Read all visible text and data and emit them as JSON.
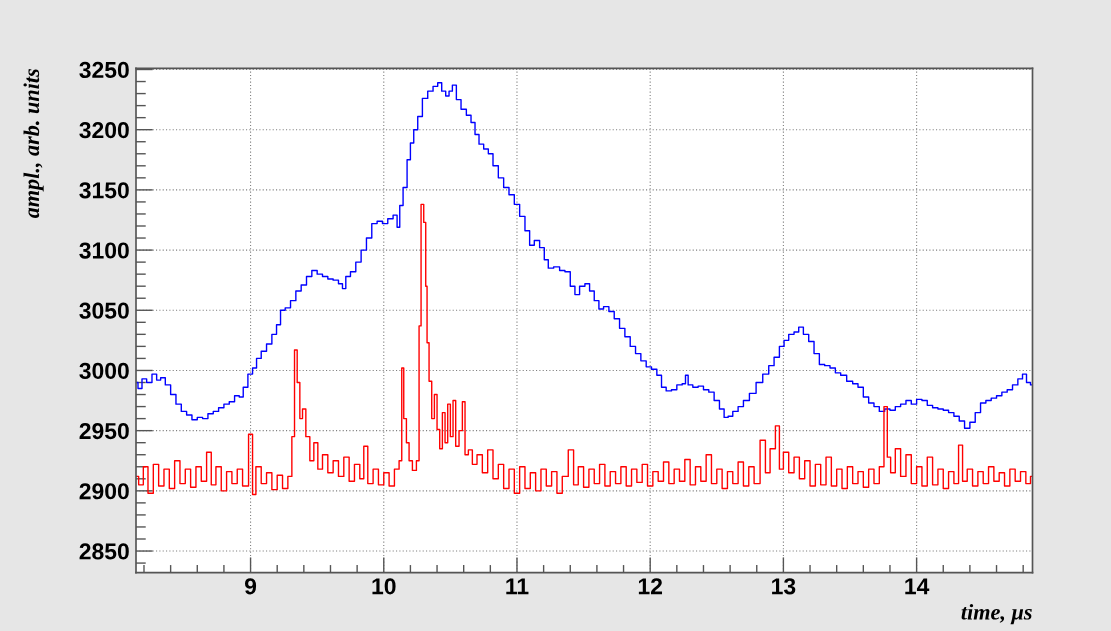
{
  "chart_data": {
    "type": "step",
    "xlabel": "time, μs",
    "ylabel": "ampl., arb. units",
    "xlim": [
      8.14,
      14.87
    ],
    "ylim": [
      2832,
      3251
    ],
    "xticks": [
      9,
      10,
      11,
      12,
      13,
      14
    ],
    "yticks": [
      2850,
      2900,
      2950,
      3000,
      3050,
      3100,
      3150,
      3200,
      3250
    ],
    "grid": true,
    "series": [
      {
        "color": "#0000ff",
        "x": [
          8.14,
          8.17,
          8.2,
          8.24,
          8.28,
          8.31,
          8.34,
          8.38,
          8.42,
          8.46,
          8.5,
          8.54,
          8.58,
          8.62,
          8.66,
          8.7,
          8.74,
          8.78,
          8.82,
          8.86,
          8.9,
          8.93,
          8.96,
          9.0,
          9.03,
          9.06,
          9.1,
          9.14,
          9.18,
          9.21,
          9.24,
          9.28,
          9.32,
          9.36,
          9.4,
          9.44,
          9.48,
          9.52,
          9.56,
          9.6,
          9.64,
          9.68,
          9.7,
          9.73,
          9.77,
          9.81,
          9.85,
          9.89,
          9.93,
          9.97,
          10.01,
          10.05,
          10.09,
          10.11,
          10.13,
          10.16,
          10.19,
          10.21,
          10.24,
          10.27,
          10.31,
          10.35,
          10.39,
          10.42,
          10.45,
          10.48,
          10.5,
          10.53,
          10.56,
          10.6,
          10.64,
          10.67,
          10.7,
          10.73,
          10.77,
          10.8,
          10.84,
          10.88,
          10.92,
          10.96,
          11.0,
          11.04,
          11.08,
          11.11,
          11.15,
          11.19,
          11.22,
          11.25,
          11.3,
          11.34,
          11.38,
          11.42,
          11.45,
          11.49,
          11.53,
          11.56,
          11.6,
          11.63,
          11.67,
          11.71,
          11.75,
          11.79,
          11.83,
          11.87,
          11.91,
          11.95,
          11.99,
          12.03,
          12.07,
          12.1,
          12.14,
          12.18,
          12.22,
          12.26,
          12.27,
          12.3,
          12.34,
          12.38,
          12.42,
          12.46,
          12.5,
          12.54,
          12.57,
          12.6,
          12.64,
          12.68,
          12.72,
          12.77,
          12.82,
          12.87,
          12.91,
          12.95,
          12.99,
          13.02,
          13.06,
          13.1,
          13.13,
          13.17,
          13.21,
          13.25,
          13.29,
          13.33,
          13.37,
          13.41,
          13.45,
          13.5,
          13.54,
          13.58,
          13.62,
          13.66,
          13.7,
          13.74,
          13.78,
          13.82,
          13.86,
          13.9,
          13.94,
          13.98,
          14.02,
          14.06,
          14.1,
          14.14,
          14.18,
          14.22,
          14.26,
          14.3,
          14.34,
          14.38,
          14.42,
          14.46,
          14.5,
          14.54,
          14.58,
          14.62,
          14.66,
          14.7,
          14.74,
          14.78,
          14.81,
          14.84,
          14.87
        ],
        "values": [
          2990,
          2985,
          2993,
          2990,
          2997,
          2992,
          2994,
          2988,
          2980,
          2972,
          2966,
          2963,
          2959,
          2961,
          2960,
          2964,
          2966,
          2969,
          2972,
          2974,
          2979,
          2978,
          2986,
          2997,
          3002,
          3010,
          3016,
          3022,
          3030,
          3038,
          3050,
          3052,
          3058,
          3066,
          3071,
          3078,
          3083,
          3080,
          3078,
          3076,
          3075,
          3072,
          3068,
          3078,
          3082,
          3090,
          3100,
          3110,
          3122,
          3124,
          3122,
          3126,
          3129,
          3119,
          3137,
          3152,
          3175,
          3189,
          3200,
          3211,
          3226,
          3232,
          3236,
          3239,
          3232,
          3228,
          3232,
          3237,
          3225,
          3217,
          3212,
          3206,
          3196,
          3188,
          3184,
          3180,
          3170,
          3160,
          3152,
          3146,
          3138,
          3128,
          3116,
          3104,
          3108,
          3102,
          3092,
          3085,
          3086,
          3083,
          3082,
          3070,
          3063,
          3070,
          3072,
          3066,
          3058,
          3051,
          3053,
          3049,
          3043,
          3035,
          3028,
          3020,
          3014,
          3008,
          3003,
          3001,
          2996,
          2986,
          2983,
          2984,
          2988,
          2989,
          2996,
          2988,
          2986,
          2987,
          2984,
          2982,
          2975,
          2968,
          2961,
          2962,
          2966,
          2970,
          2975,
          2981,
          2990,
          2997,
          3004,
          3011,
          3020,
          3025,
          3030,
          3032,
          3036,
          3030,
          3024,
          3014,
          3005,
          3004,
          3002,
          2998,
          2996,
          2991,
          2989,
          2986,
          2978,
          2973,
          2970,
          2966,
          2968,
          2967,
          2970,
          2972,
          2975,
          2972,
          2976,
          2975,
          2971,
          2969,
          2968,
          2967,
          2965,
          2962,
          2958,
          2952,
          2957,
          2965,
          2973,
          2975,
          2977,
          2979,
          2982,
          2984,
          2988,
          2993,
          2997,
          2990,
          2988
        ]
      },
      {
        "color": "#ff0000",
        "x": [
          8.14,
          8.18,
          8.21,
          8.25,
          8.29,
          8.33,
          8.37,
          8.41,
          8.45,
          8.49,
          8.53,
          8.57,
          8.61,
          8.65,
          8.69,
          8.72,
          8.76,
          8.8,
          8.84,
          8.88,
          8.92,
          8.96,
          9.01,
          9.02,
          9.06,
          9.1,
          9.14,
          9.18,
          9.22,
          9.26,
          9.3,
          9.32,
          9.34,
          9.36,
          9.38,
          9.4,
          9.43,
          9.46,
          9.49,
          9.52,
          9.56,
          9.6,
          9.64,
          9.68,
          9.72,
          9.76,
          9.8,
          9.84,
          9.86,
          9.9,
          9.94,
          9.98,
          10.02,
          10.06,
          10.1,
          10.13,
          10.14,
          10.16,
          10.18,
          10.2,
          10.23,
          10.26,
          10.27,
          10.29,
          10.31,
          10.32,
          10.33,
          10.35,
          10.37,
          10.39,
          10.41,
          10.43,
          10.45,
          10.47,
          10.49,
          10.51,
          10.53,
          10.55,
          10.58,
          10.6,
          10.62,
          10.65,
          10.68,
          10.72,
          10.76,
          10.8,
          10.84,
          10.88,
          10.92,
          10.96,
          11.0,
          11.04,
          11.08,
          11.12,
          11.16,
          11.2,
          11.24,
          11.28,
          11.32,
          11.36,
          11.41,
          11.44,
          11.48,
          11.52,
          11.56,
          11.6,
          11.64,
          11.68,
          11.72,
          11.76,
          11.8,
          11.84,
          11.88,
          11.92,
          11.96,
          12.0,
          12.04,
          12.08,
          12.12,
          12.16,
          12.2,
          12.24,
          12.28,
          12.32,
          12.36,
          12.4,
          12.44,
          12.48,
          12.52,
          12.56,
          12.6,
          12.64,
          12.68,
          12.72,
          12.76,
          12.8,
          12.85,
          12.88,
          12.92,
          12.96,
          12.98,
          13.02,
          13.06,
          13.1,
          13.14,
          13.18,
          13.22,
          13.26,
          13.3,
          13.34,
          13.38,
          13.42,
          13.46,
          13.5,
          13.54,
          13.58,
          13.62,
          13.66,
          13.7,
          13.74,
          13.77,
          13.79,
          13.82,
          13.86,
          13.9,
          13.94,
          13.98,
          14.02,
          14.06,
          14.1,
          14.14,
          14.18,
          14.22,
          14.26,
          14.3,
          14.33,
          14.36,
          14.4,
          14.44,
          14.48,
          14.52,
          14.56,
          14.6,
          14.64,
          14.68,
          14.72,
          14.76,
          14.8,
          14.84,
          14.87
        ],
        "values": [
          2912,
          2905,
          2920,
          2898,
          2922,
          2904,
          2918,
          2902,
          2925,
          2906,
          2918,
          2903,
          2920,
          2908,
          2932,
          2905,
          2920,
          2900,
          2916,
          2906,
          2918,
          2904,
          2947,
          2897,
          2920,
          2906,
          2915,
          2901,
          2913,
          2902,
          2912,
          2945,
          3017,
          2990,
          2960,
          2968,
          2945,
          2925,
          2940,
          2918,
          2930,
          2915,
          2925,
          2912,
          2928,
          2908,
          2922,
          2910,
          2937,
          2906,
          2918,
          2905,
          2915,
          2904,
          2918,
          2925,
          3002,
          2960,
          2940,
          2925,
          2917,
          2925,
          3037,
          3138,
          3123,
          3070,
          3023,
          2991,
          2960,
          2980,
          2951,
          2935,
          2965,
          2940,
          2972,
          2945,
          2975,
          2937,
          2950,
          2974,
          2930,
          2934,
          2922,
          2930,
          2915,
          2934,
          2910,
          2922,
          2902,
          2918,
          2898,
          2920,
          2902,
          2915,
          2900,
          2918,
          2904,
          2916,
          2898,
          2912,
          2934,
          2905,
          2920,
          2903,
          2918,
          2906,
          2922,
          2904,
          2916,
          2906,
          2920,
          2904,
          2918,
          2907,
          2922,
          2904,
          2916,
          2908,
          2924,
          2906,
          2918,
          2908,
          2926,
          2905,
          2920,
          2908,
          2930,
          2906,
          2918,
          2902,
          2916,
          2906,
          2924,
          2904,
          2920,
          2906,
          2942,
          2915,
          2935,
          2954,
          2918,
          2932,
          2915,
          2928,
          2910,
          2925,
          2904,
          2922,
          2905,
          2928,
          2904,
          2918,
          2902,
          2920,
          2906,
          2916,
          2903,
          2918,
          2906,
          2920,
          2970,
          2928,
          2915,
          2935,
          2912,
          2930,
          2906,
          2920,
          2904,
          2928,
          2905,
          2918,
          2902,
          2916,
          2906,
          2938,
          2908,
          2918,
          2904,
          2916,
          2906,
          2920,
          2908,
          2915,
          2904,
          2918,
          2908,
          2916,
          2906,
          2912
        ]
      }
    ]
  }
}
